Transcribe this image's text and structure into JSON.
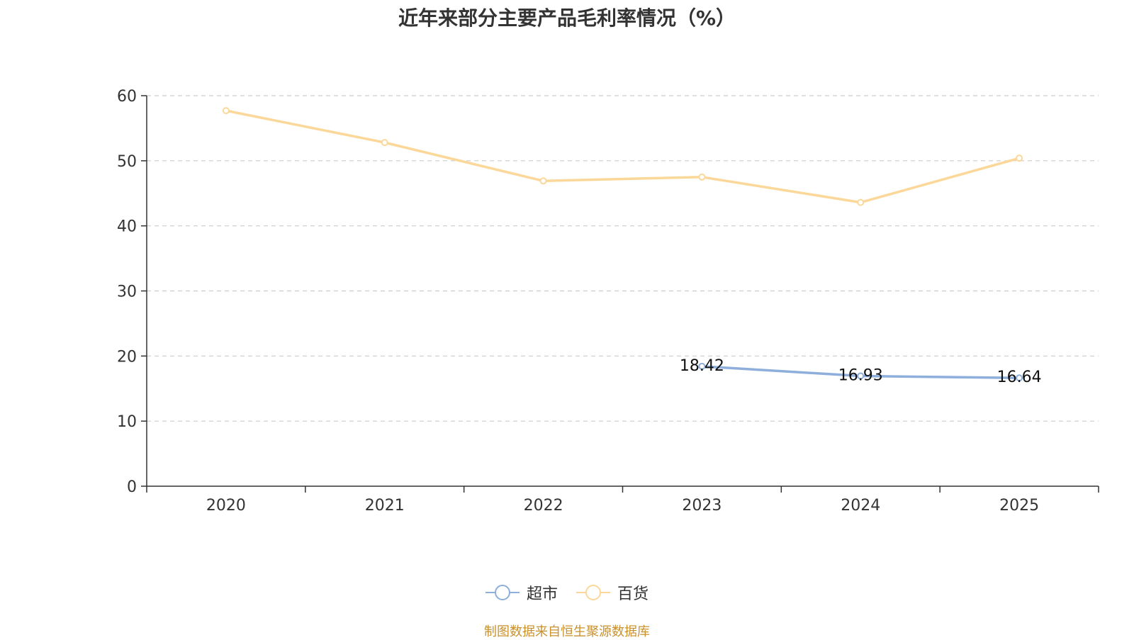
{
  "chart_data": {
    "type": "line",
    "title": "近年来部分主要产品毛利率情况（%）",
    "categories": [
      "2020",
      "2021",
      "2022",
      "2023",
      "2024",
      "2025"
    ],
    "ylim": [
      0,
      60
    ],
    "yticks": [
      0,
      10,
      20,
      30,
      40,
      50,
      60
    ],
    "grid": true,
    "legend_position": "bottom",
    "series": [
      {
        "name": "超市",
        "color": "#8eaedb",
        "values": [
          null,
          null,
          null,
          18.42,
          16.93,
          16.64
        ],
        "labels": [
          "",
          "",
          "",
          "18.42",
          "16.93",
          "16.64"
        ]
      },
      {
        "name": "百货",
        "color": "#fbd899",
        "values": [
          57.7,
          52.8,
          46.9,
          47.5,
          43.6,
          50.4
        ],
        "labels": [
          "",
          "",
          "",
          "",
          "",
          ""
        ]
      }
    ]
  },
  "legend": {
    "items": [
      {
        "label": "超市",
        "color": "#8eaedb"
      },
      {
        "label": "百货",
        "color": "#fbd899"
      }
    ]
  },
  "source": "制图数据来自恒生聚源数据库"
}
